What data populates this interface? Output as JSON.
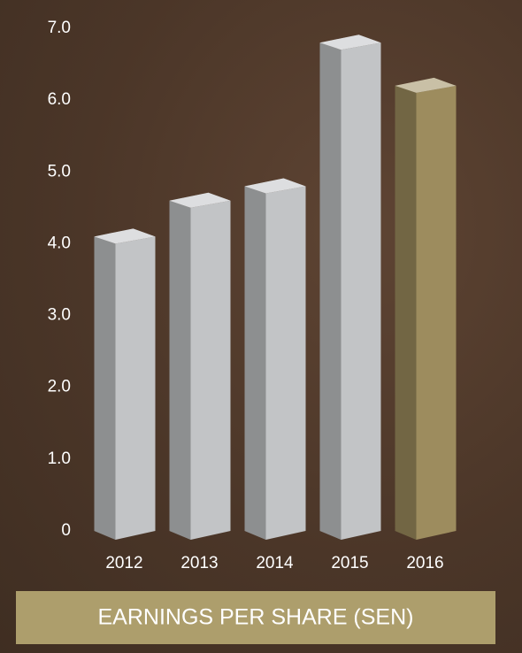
{
  "chart_data": {
    "type": "bar3d",
    "title": "EARNINGS PER SHARE (SEN)",
    "categories": [
      "2012",
      "2013",
      "2014",
      "2015",
      "2016"
    ],
    "values": [
      4.1,
      4.6,
      4.8,
      6.8,
      6.2
    ],
    "colors": [
      "#c2c4c6",
      "#c2c4c6",
      "#c2c4c6",
      "#c2c4c6",
      "#9d8c5e"
    ],
    "ylim": [
      0,
      7
    ],
    "yticks": [
      0,
      {
        "value": 1,
        "label": "1.0"
      },
      {
        "value": 2,
        "label": "2.0"
      },
      {
        "value": 3,
        "label": "3.0"
      },
      {
        "value": 4,
        "label": "4.0"
      },
      {
        "value": 5,
        "label": "5.0"
      },
      {
        "value": 6,
        "label": "6.0"
      },
      {
        "value": 7,
        "label": "7.0"
      }
    ]
  }
}
